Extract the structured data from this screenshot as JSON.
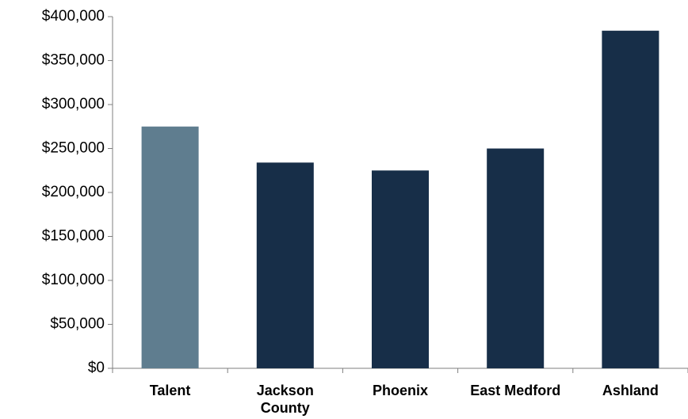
{
  "chart_data": {
    "type": "bar",
    "title": "",
    "xlabel": "",
    "ylabel": "",
    "categories": [
      "Talent",
      "Jackson County",
      "Phoenix",
      "East Medford",
      "Ashland"
    ],
    "category_lines": [
      [
        "Talent"
      ],
      [
        "Jackson",
        "County"
      ],
      [
        "Phoenix"
      ],
      [
        "East Medford"
      ],
      [
        "Ashland"
      ]
    ],
    "values": [
      275000,
      234000,
      225000,
      250000,
      384000
    ],
    "bar_colors": [
      "#5f7d8f",
      "#172e48",
      "#172e48",
      "#172e48",
      "#172e48"
    ],
    "ylim": [
      0,
      400000
    ],
    "yticks": [
      0,
      50000,
      100000,
      150000,
      200000,
      250000,
      300000,
      350000,
      400000
    ],
    "ytick_labels": [
      "$0",
      "$50,000",
      "$100,000",
      "$150,000",
      "$200,000",
      "$250,000",
      "$300,000",
      "$350,000",
      "$400,000"
    ],
    "grid": false,
    "legend": "none"
  }
}
